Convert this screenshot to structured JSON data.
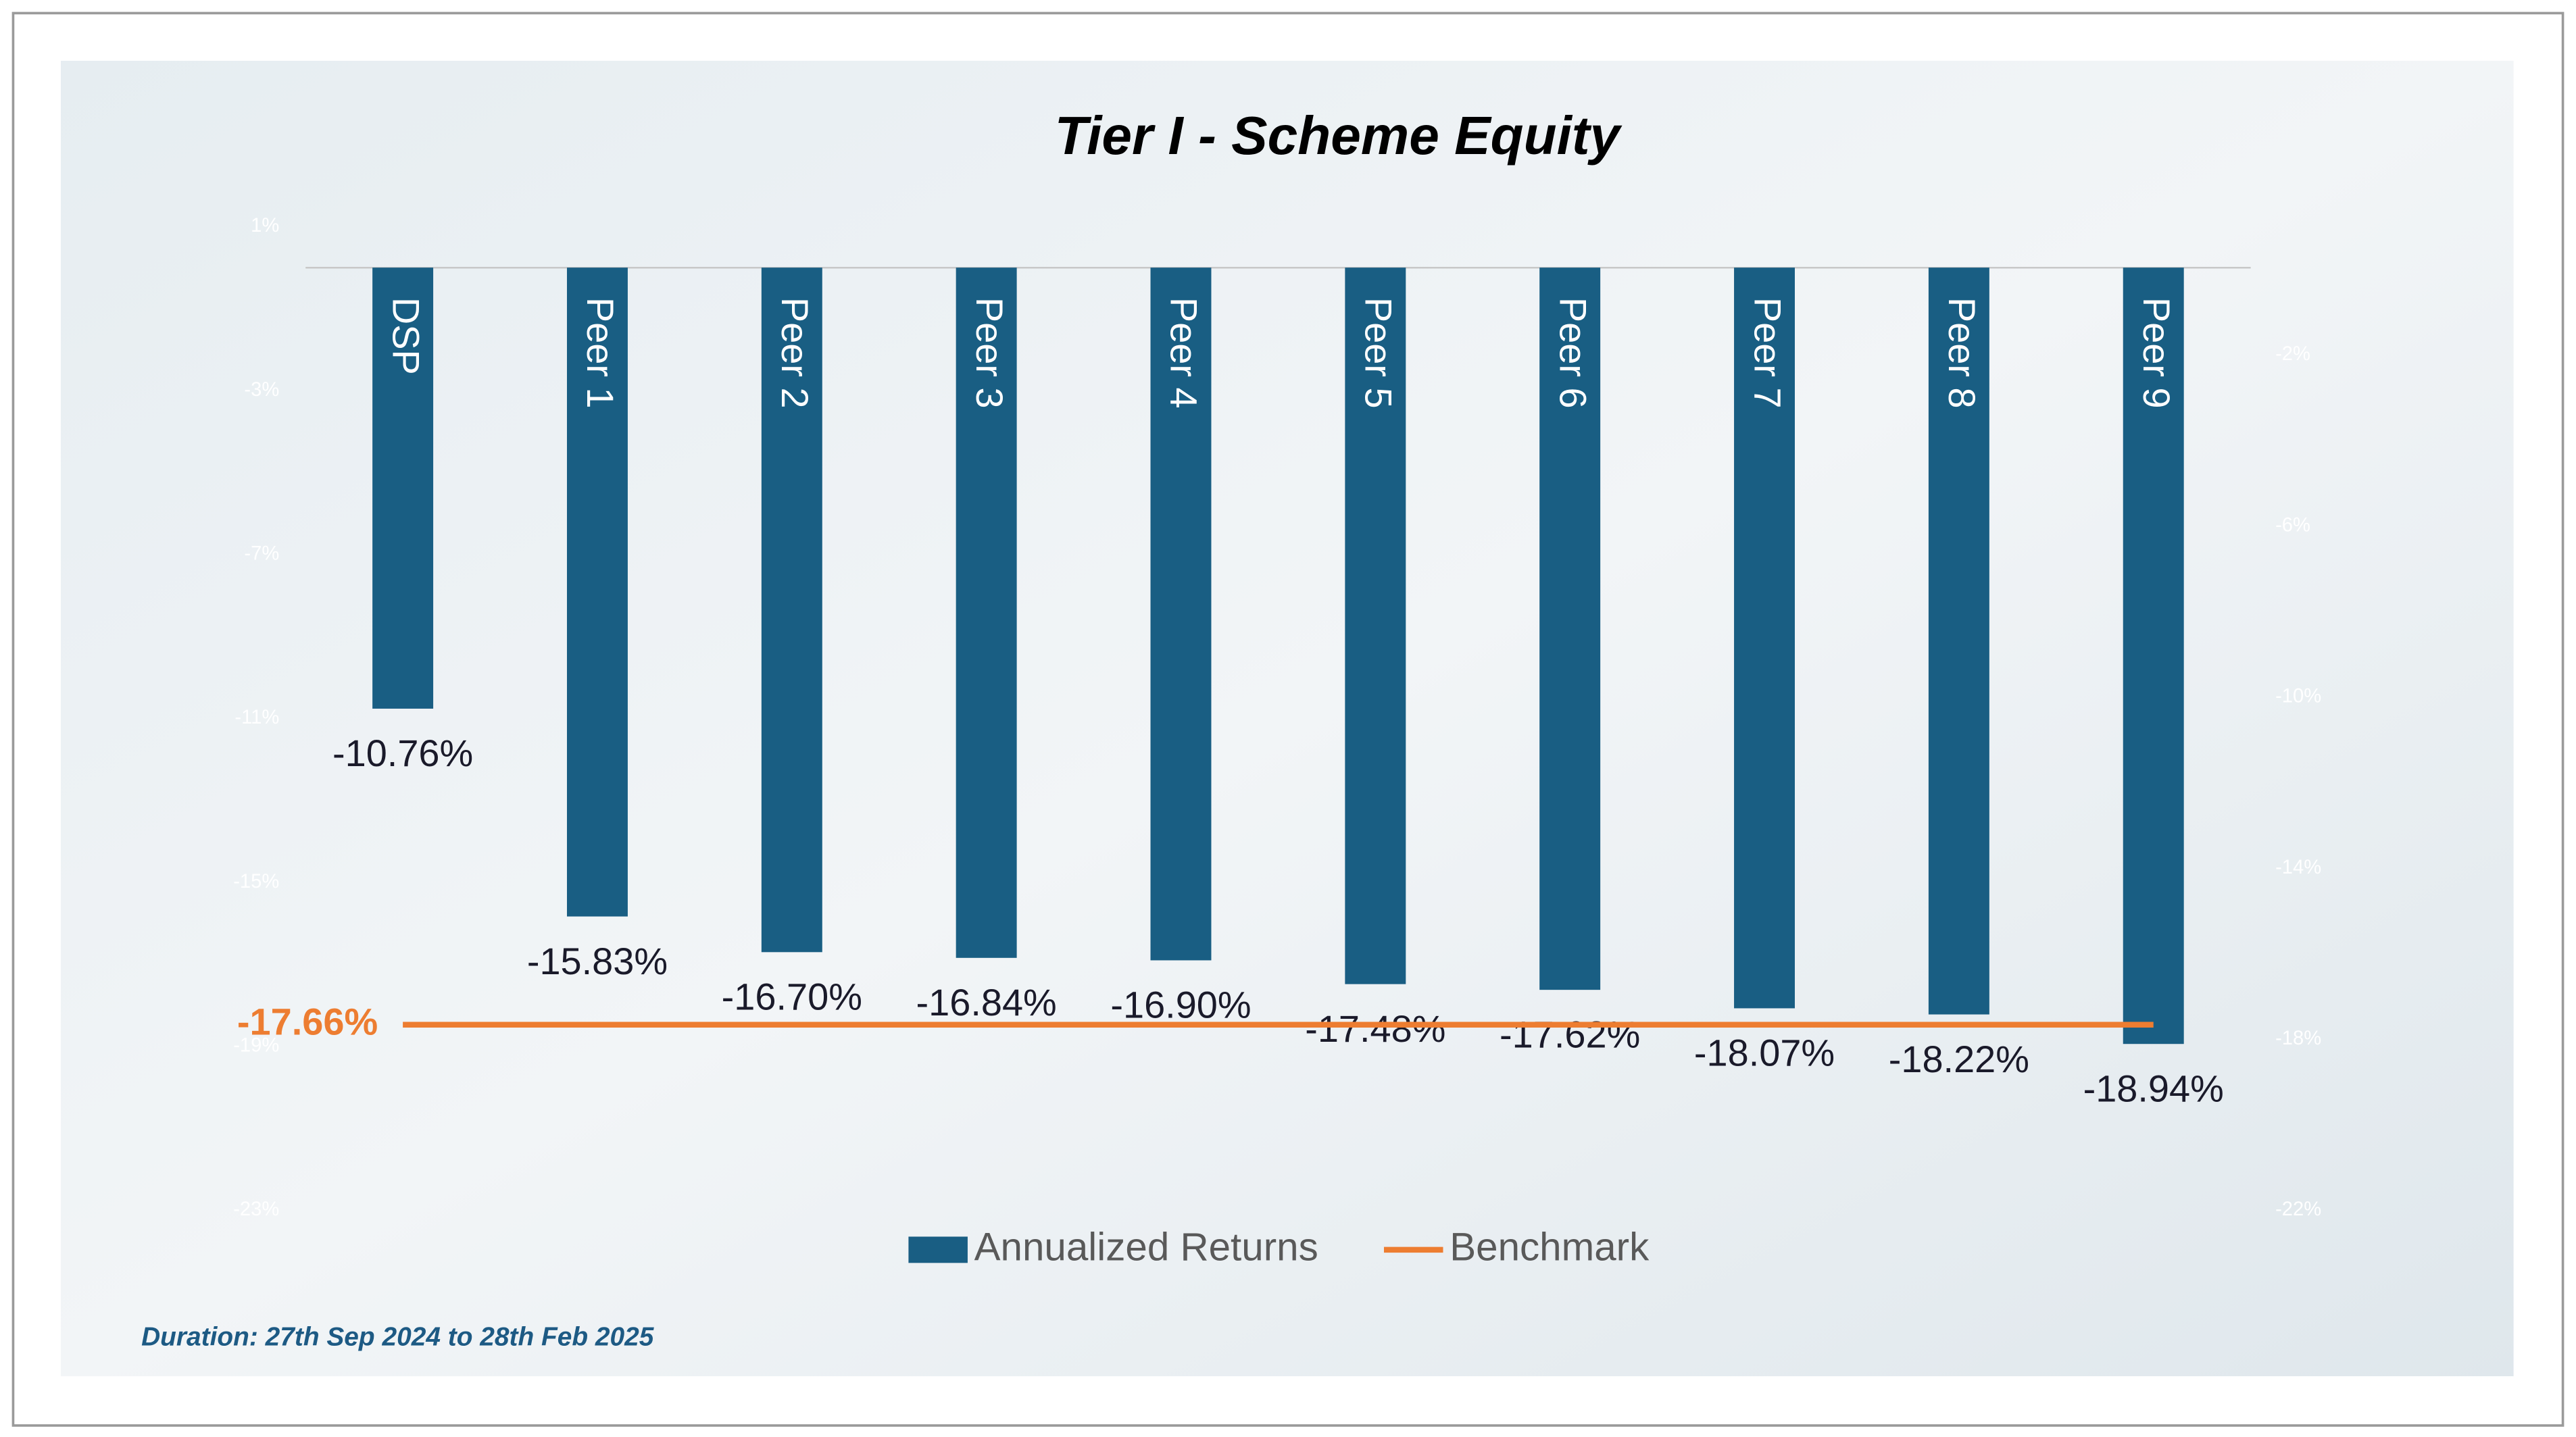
{
  "chart_data": {
    "type": "bar",
    "title": "Tier I - Scheme Equity",
    "footnote": "Duration: 27th Sep 2024 to 28th Feb 2025",
    "categories": [
      "DSP",
      "Peer 1",
      "Peer 2",
      "Peer 3",
      "Peer 4",
      "Peer 5",
      "Peer 6",
      "Peer 7",
      "Peer 8",
      "Peer 9"
    ],
    "series": [
      {
        "name": "Annualized Returns",
        "type": "bar",
        "color": "#195e83",
        "values": [
          -10.76,
          -15.83,
          -16.7,
          -16.84,
          -16.9,
          -17.48,
          -17.62,
          -18.07,
          -18.22,
          -18.94
        ],
        "value_labels": [
          "-10.76%",
          "-15.83%",
          "-16.70%",
          "-16.84%",
          "-16.90%",
          "-17.48%",
          "-17.62%",
          "-18.07%",
          "-18.22%",
          "-18.94%"
        ]
      },
      {
        "name": "Benchmark",
        "type": "line",
        "axis": "y2",
        "color": "#ed7d31",
        "values": [
          -17.66,
          -17.66,
          -17.66,
          -17.66,
          -17.66,
          -17.66,
          -17.66,
          -17.66,
          -17.66,
          -17.66
        ],
        "value_labels": [
          "-17.66%",
          null,
          null,
          null,
          null,
          null,
          null,
          null,
          null,
          null
        ]
      }
    ],
    "ylim": [
      -23,
      1
    ],
    "yticks": [
      {
        "value": 1,
        "label": "1%"
      },
      {
        "value": -3,
        "label": "-3%"
      },
      {
        "value": -7,
        "label": "-7%"
      },
      {
        "value": -11,
        "label": "-11%"
      },
      {
        "value": -15,
        "label": "-15%"
      },
      {
        "value": -19,
        "label": "-19%"
      },
      {
        "value": -23,
        "label": "-23%"
      }
    ],
    "y2lim": [
      -22,
      1
    ],
    "y2ticks": [
      {
        "value": -2,
        "label": "-2%"
      },
      {
        "value": -6,
        "label": "-6%"
      },
      {
        "value": -10,
        "label": "-10%"
      },
      {
        "value": -14,
        "label": "-14%"
      },
      {
        "value": -18,
        "label": "-18%"
      },
      {
        "value": -22,
        "label": "-22%"
      }
    ],
    "legend": "bottom"
  }
}
